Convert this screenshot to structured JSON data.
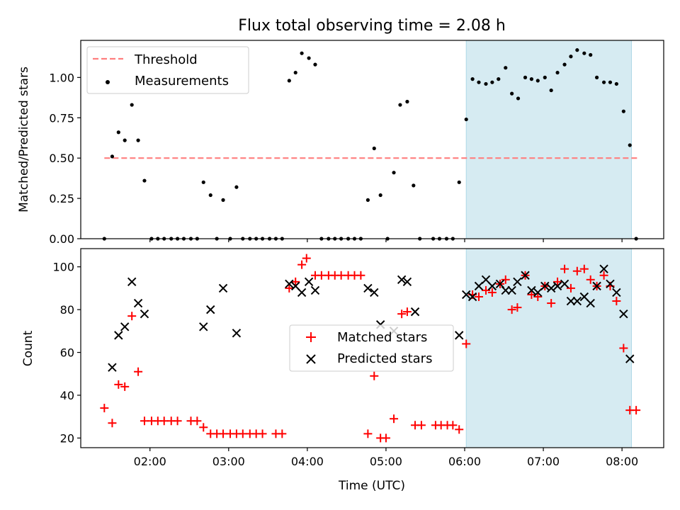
{
  "chart_data": [
    {
      "type": "scatter",
      "title": "Flux total observing time = 2.08 h",
      "xlabel": "",
      "ylabel": "Matched/Predicted stars",
      "xlim": [
        1.12,
        8.53
      ],
      "ylim": [
        0,
        1.23
      ],
      "yticks": [
        0,
        0.25,
        0.5,
        0.75,
        1.0
      ],
      "ytick_labels": [
        "0.00",
        "0.25",
        "0.50",
        "0.75",
        "1.00"
      ],
      "xticks": [
        2,
        3,
        4,
        5,
        6,
        7,
        8
      ],
      "grid": false,
      "legend_position": "upper-left",
      "highlight_span": {
        "x_start": 6.02,
        "x_end": 8.12,
        "color": "#add8e6"
      },
      "threshold": {
        "name": "Threshold",
        "value": 0.5,
        "x_start": 1.42,
        "x_end": 8.2,
        "color": "#ff7f7f",
        "style": "dashed"
      },
      "series": [
        {
          "name": "Measurements",
          "marker": "dot",
          "color": "#000000",
          "x": [
            1.42,
            1.52,
            1.6,
            1.68,
            1.77,
            1.85,
            1.93,
            2.02,
            2.1,
            2.18,
            2.27,
            2.35,
            2.43,
            2.52,
            2.6,
            2.68,
            2.77,
            2.85,
            2.93,
            3.02,
            3.1,
            3.18,
            3.27,
            3.35,
            3.43,
            3.52,
            3.6,
            3.68,
            3.77,
            3.85,
            3.93,
            4.02,
            4.1,
            4.18,
            4.27,
            4.35,
            4.43,
            4.52,
            4.6,
            4.68,
            4.77,
            4.85,
            4.93,
            5.02,
            5.1,
            5.18,
            5.27,
            5.35,
            5.43,
            5.6,
            5.68,
            5.77,
            5.85,
            5.93,
            6.02,
            6.1,
            6.18,
            6.27,
            6.35,
            6.43,
            6.52,
            6.6,
            6.68,
            6.77,
            6.85,
            6.93,
            7.02,
            7.1,
            7.18,
            7.27,
            7.35,
            7.43,
            7.52,
            7.6,
            7.68,
            7.77,
            7.85,
            7.93,
            8.02,
            8.1,
            8.18
          ],
          "y": [
            0.0,
            0.51,
            0.66,
            0.61,
            0.83,
            0.61,
            0.36,
            0.0,
            0.0,
            0.0,
            0.0,
            0.0,
            0.0,
            0.0,
            0.0,
            0.35,
            0.27,
            0.0,
            0.24,
            0.0,
            0.32,
            0.0,
            0.0,
            0.0,
            0.0,
            0.0,
            0.0,
            0.0,
            0.98,
            1.03,
            1.15,
            1.12,
            1.08,
            0.0,
            0.0,
            0.0,
            0.0,
            0.0,
            0.0,
            0.0,
            0.24,
            0.56,
            0.27,
            0.0,
            0.41,
            0.83,
            0.85,
            0.33,
            0.0,
            0.0,
            0.0,
            0.0,
            0.0,
            0.35,
            0.74,
            0.99,
            0.97,
            0.96,
            0.97,
            0.99,
            1.06,
            0.9,
            0.87,
            1.0,
            0.99,
            0.98,
            1.0,
            0.92,
            1.03,
            1.08,
            1.13,
            1.17,
            1.15,
            1.14,
            1.0,
            0.97,
            0.97,
            0.96,
            0.79,
            0.58,
            0.0
          ]
        }
      ]
    },
    {
      "type": "scatter",
      "title": "",
      "xlabel": "Time (UTC)",
      "ylabel": "Count",
      "xlim": [
        1.12,
        8.53
      ],
      "ylim": [
        15.5,
        108.5
      ],
      "yticks": [
        20,
        40,
        60,
        80,
        100
      ],
      "ytick_labels": [
        "20",
        "40",
        "60",
        "80",
        "100"
      ],
      "xticks": [
        2,
        3,
        4,
        5,
        6,
        7,
        8
      ],
      "xtick_labels": [
        "02:00",
        "03:00",
        "04:00",
        "05:00",
        "06:00",
        "07:00",
        "08:00"
      ],
      "grid": false,
      "legend_position": "center",
      "highlight_span": {
        "x_start": 6.02,
        "x_end": 8.12,
        "color": "#add8e6"
      },
      "series": [
        {
          "name": "Matched stars",
          "marker": "plus",
          "color": "#ff0000",
          "x": [
            1.42,
            1.52,
            1.6,
            1.68,
            1.77,
            1.85,
            1.93,
            2.02,
            2.1,
            2.18,
            2.27,
            2.35,
            2.52,
            2.6,
            2.68,
            2.77,
            2.85,
            2.93,
            3.02,
            3.1,
            3.18,
            3.27,
            3.35,
            3.43,
            3.6,
            3.68,
            3.77,
            3.85,
            3.93,
            3.99,
            4.1,
            4.18,
            4.27,
            4.35,
            4.43,
            4.52,
            4.6,
            4.68,
            4.77,
            4.85,
            4.93,
            5.0,
            5.1,
            5.2,
            5.27,
            5.37,
            5.45,
            5.63,
            5.7,
            5.78,
            5.85,
            5.93,
            6.02,
            6.1,
            6.18,
            6.27,
            6.35,
            6.45,
            6.52,
            6.6,
            6.67,
            6.77,
            6.85,
            6.93,
            7.02,
            7.1,
            7.18,
            7.27,
            7.35,
            7.43,
            7.52,
            7.6,
            7.68,
            7.77,
            7.85,
            7.93,
            8.02,
            8.1,
            8.18
          ],
          "y": [
            34,
            27,
            45,
            44,
            77,
            51,
            28,
            28,
            28,
            28,
            28,
            28,
            28,
            28,
            25,
            22,
            22,
            22,
            22,
            22,
            22,
            22,
            22,
            22,
            22,
            22,
            90,
            93,
            101,
            104,
            96,
            96,
            96,
            96,
            96,
            96,
            96,
            96,
            22,
            49,
            20,
            20,
            29,
            78,
            79,
            26,
            26,
            26,
            26,
            26,
            26,
            24,
            64,
            87,
            86,
            89,
            88,
            92,
            94,
            80,
            81,
            96,
            87,
            86,
            91,
            83,
            93,
            99,
            90,
            98,
            99,
            94,
            91,
            96,
            91,
            84,
            62,
            33,
            33
          ]
        },
        {
          "name": "Predicted stars",
          "marker": "x",
          "color": "#000000",
          "x": [
            1.52,
            1.6,
            1.68,
            1.77,
            1.85,
            1.93,
            2.68,
            2.77,
            2.93,
            3.1,
            3.77,
            3.85,
            3.93,
            4.02,
            4.1,
            4.77,
            4.85,
            4.93,
            5.1,
            5.2,
            5.27,
            5.37,
            5.93,
            6.02,
            6.1,
            6.18,
            6.27,
            6.35,
            6.45,
            6.52,
            6.6,
            6.67,
            6.77,
            6.85,
            6.93,
            7.02,
            7.1,
            7.18,
            7.27,
            7.35,
            7.43,
            7.52,
            7.6,
            7.68,
            7.77,
            7.85,
            7.93,
            8.02,
            8.1
          ],
          "y": [
            53,
            68,
            72,
            93,
            83,
            78,
            72,
            80,
            90,
            69,
            92,
            91,
            88,
            93,
            89,
            90,
            88,
            73,
            70,
            94,
            93,
            79,
            68,
            87,
            86,
            91,
            94,
            91,
            92,
            89,
            89,
            93,
            96,
            89,
            88,
            91,
            90,
            91,
            92,
            84,
            84,
            86,
            83,
            91,
            99,
            92,
            88,
            78,
            57
          ]
        }
      ]
    }
  ]
}
